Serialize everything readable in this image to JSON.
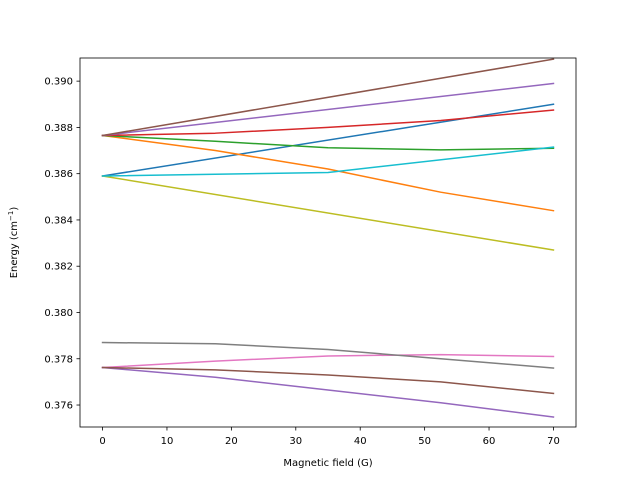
{
  "chart_data": {
    "type": "line",
    "title": "",
    "xlabel": "Magnetic field (G)",
    "ylabel_main": "Energy (cm",
    "ylabel_sup": "−1",
    "ylabel_close": ")",
    "xlim": [
      -3.5,
      73.5
    ],
    "ylim": [
      0.37505,
      0.391
    ],
    "xticks": [
      0,
      10,
      20,
      30,
      40,
      50,
      60,
      70
    ],
    "yticks": [
      0.376,
      0.378,
      0.38,
      0.382,
      0.384,
      0.386,
      0.388,
      0.39
    ],
    "ytick_labels": [
      "0.376",
      "0.378",
      "0.380",
      "0.382",
      "0.384",
      "0.386",
      "0.388",
      "0.390"
    ],
    "grid": false,
    "series": [
      {
        "color": "#1f77b4",
        "x": [
          0,
          70
        ],
        "y": [
          0.3859,
          0.389
        ]
      },
      {
        "color": "#ff7f0e",
        "x": [
          0,
          17.5,
          35,
          52.5,
          70
        ],
        "y": [
          0.38765,
          0.387,
          0.3862,
          0.3852,
          0.3844
        ]
      },
      {
        "color": "#2ca02c",
        "x": [
          0,
          17.5,
          35,
          52.5,
          70
        ],
        "y": [
          0.38765,
          0.3874,
          0.38712,
          0.38703,
          0.3871
        ]
      },
      {
        "color": "#d62728",
        "x": [
          0,
          17.5,
          35,
          52.5,
          70
        ],
        "y": [
          0.38765,
          0.38775,
          0.388,
          0.3883,
          0.38875
        ]
      },
      {
        "color": "#9467bd",
        "x": [
          0,
          70
        ],
        "y": [
          0.38765,
          0.3899
        ]
      },
      {
        "color": "#8c564b",
        "x": [
          0,
          70
        ],
        "y": [
          0.38765,
          0.39095
        ]
      },
      {
        "color": "#e377c2",
        "x": [
          0,
          17.5,
          35,
          52.5,
          70
        ],
        "y": [
          0.37762,
          0.3779,
          0.37812,
          0.37818,
          0.3781
        ]
      },
      {
        "color": "#7f7f7f",
        "x": [
          0,
          17.5,
          35,
          52.5,
          70
        ],
        "y": [
          0.3787,
          0.37865,
          0.3784,
          0.378,
          0.3776
        ]
      },
      {
        "color": "#bcbd22",
        "x": [
          0,
          70
        ],
        "y": [
          0.3859,
          0.3827
        ]
      },
      {
        "color": "#17becf",
        "x": [
          0,
          35,
          70
        ],
        "y": [
          0.3859,
          0.38605,
          0.38715
        ]
      },
      {
        "color": "#9467bd",
        "x": [
          0,
          17.5,
          35,
          52.5,
          70
        ],
        "y": [
          0.37762,
          0.3772,
          0.37665,
          0.3761,
          0.37548
        ]
      },
      {
        "color": "#8c564b",
        "x": [
          0,
          17.5,
          35,
          52.5,
          70
        ],
        "y": [
          0.37762,
          0.37752,
          0.3773,
          0.377,
          0.3765
        ]
      }
    ]
  }
}
